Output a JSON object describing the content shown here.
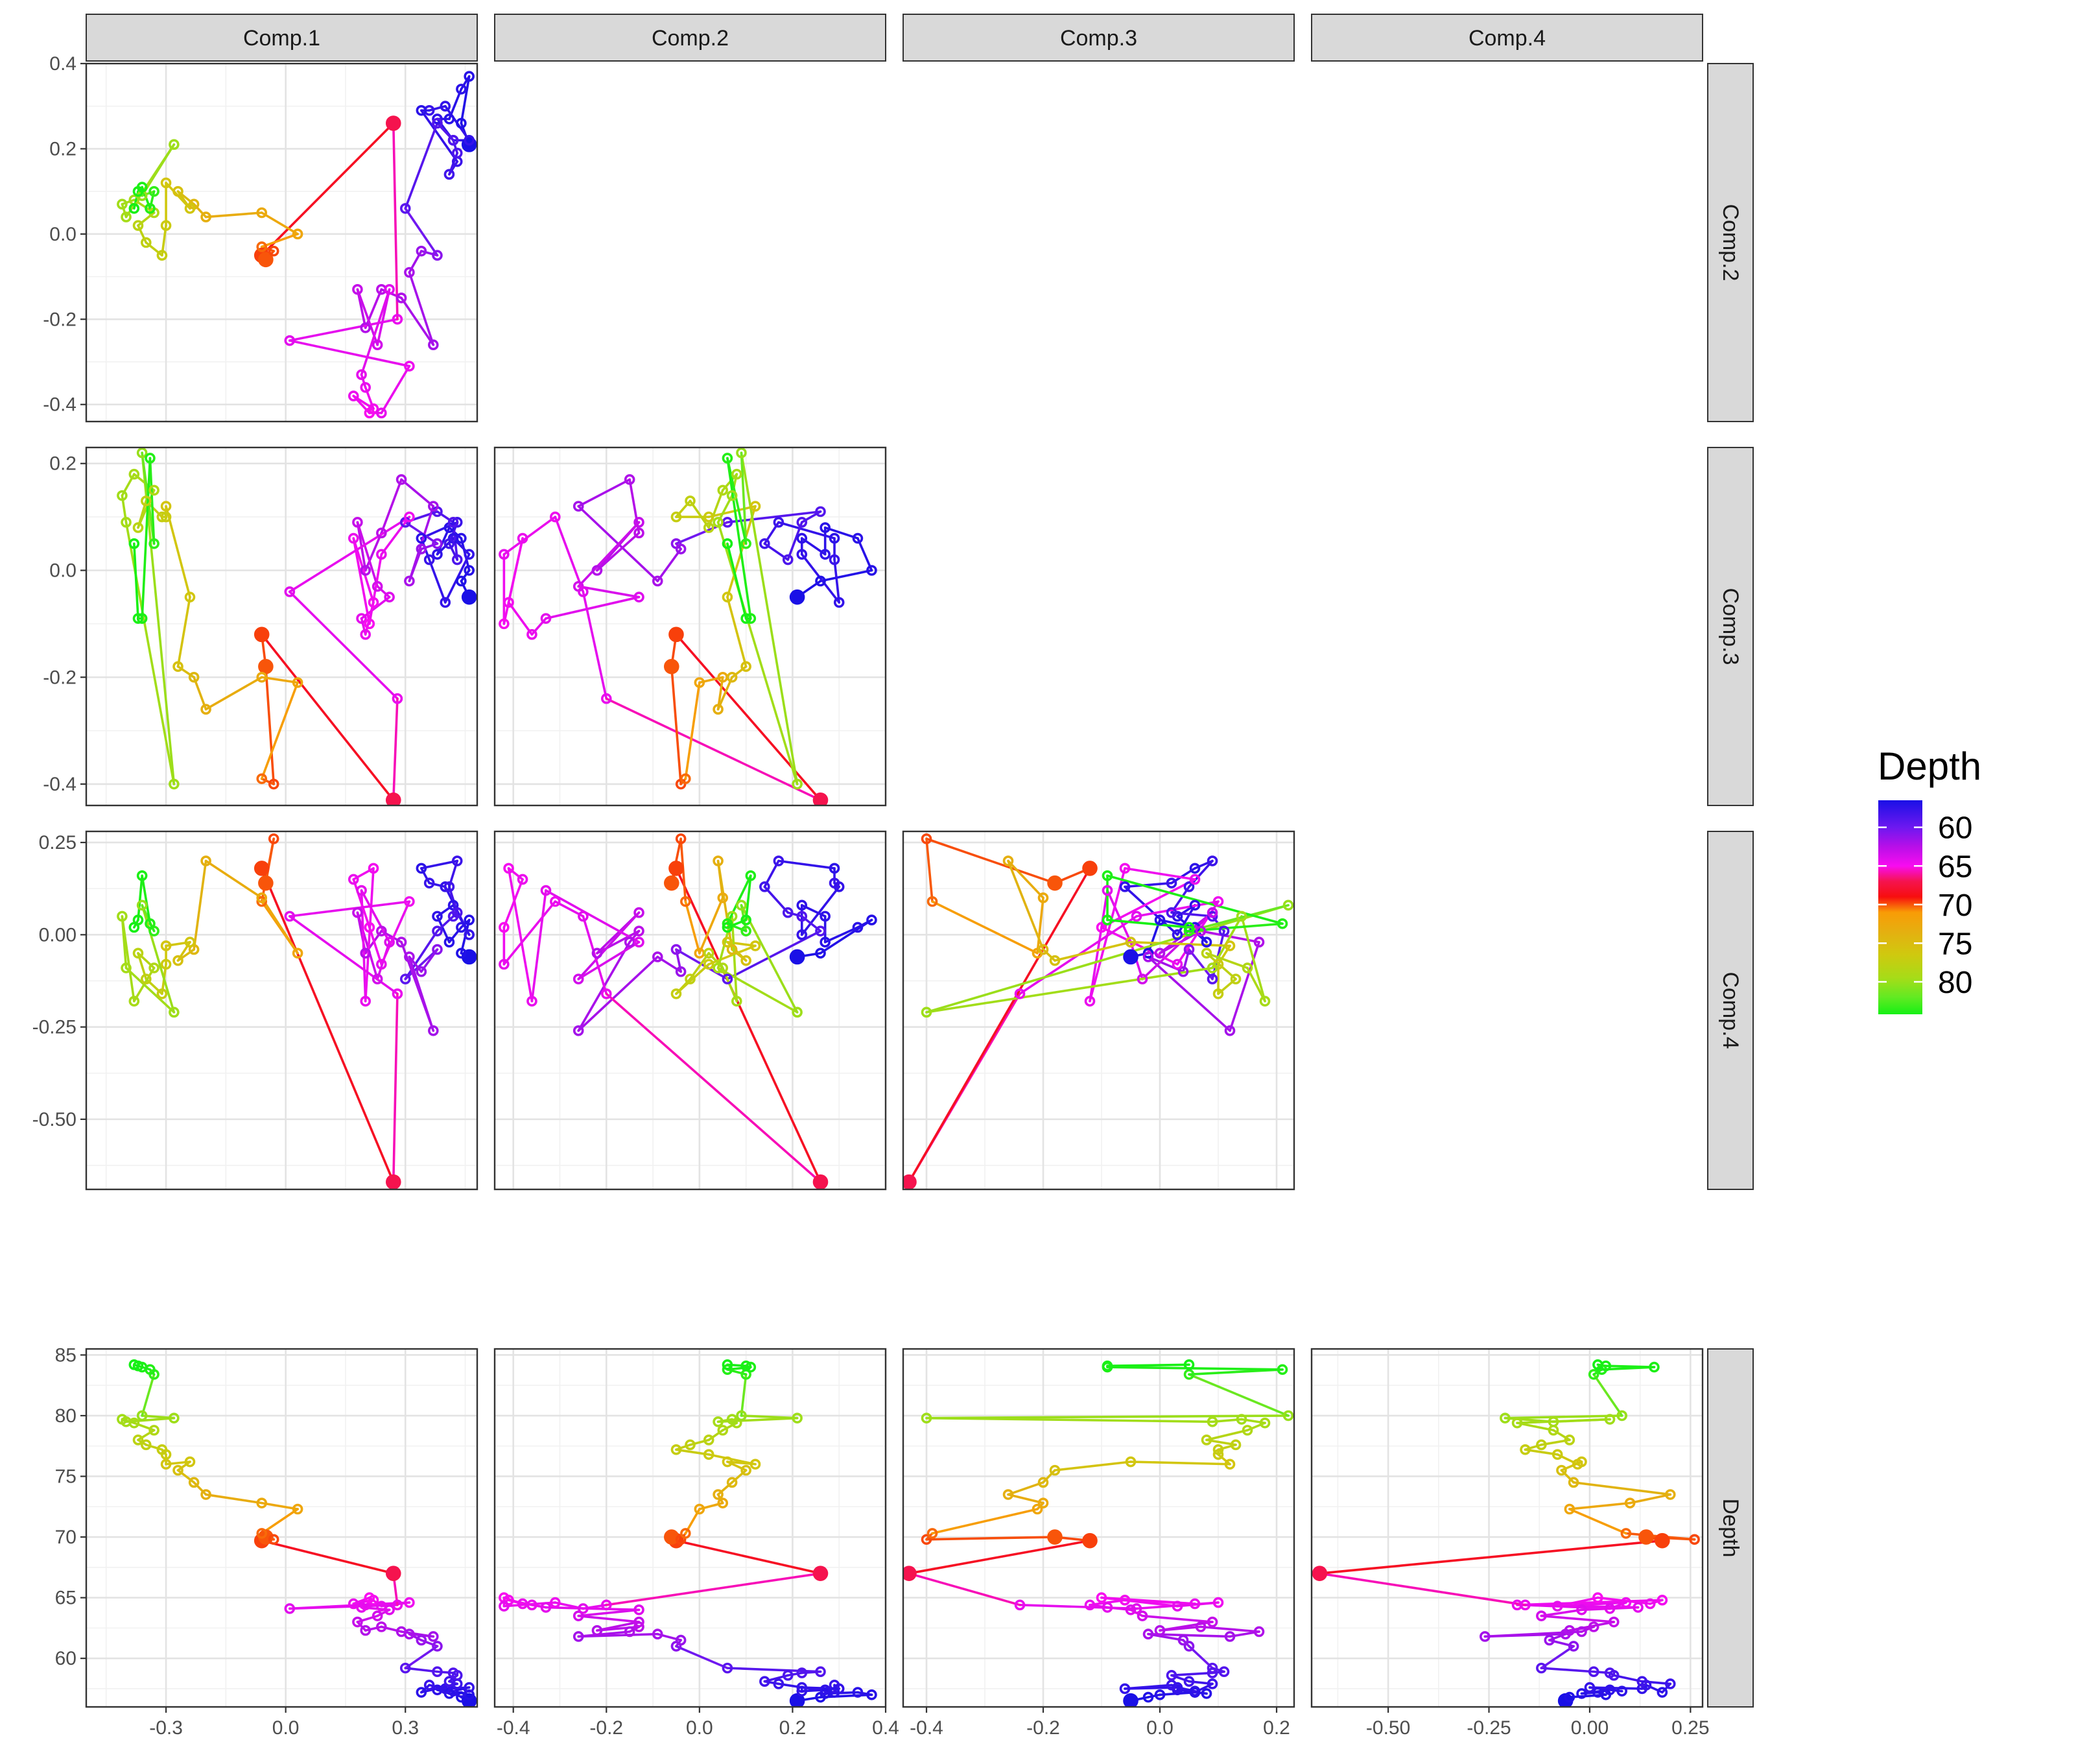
{
  "chart_data": {
    "type": "scatter",
    "description_of_layout": "",
    "variables": [
      "Comp.1",
      "Comp.2",
      "Comp.3",
      "Comp.4",
      "Depth"
    ],
    "column_strips": [
      "Comp.1",
      "Comp.2",
      "Comp.3",
      "Comp.4"
    ],
    "row_strips": [
      "Comp.2",
      "Comp.3",
      "Comp.4",
      "Depth"
    ],
    "axes": {
      "Comp.1": {
        "lim": [
          -0.5,
          0.48
        ],
        "ticks": [
          -0.3,
          0.0,
          0.3
        ],
        "tick_labels": [
          "-0.3",
          "0.0",
          "0.3"
        ]
      },
      "Comp.2": {
        "lim": [
          -0.44,
          0.4
        ],
        "ticks": [
          -0.4,
          -0.2,
          0.0,
          0.2,
          0.4
        ],
        "tick_labels": [
          "-0.4",
          "-0.2",
          "0.0",
          "0.2",
          "0.4"
        ]
      },
      "Comp.3": {
        "lim": [
          -0.44,
          0.23
        ],
        "ticks": [
          -0.4,
          -0.2,
          0.0,
          0.2
        ],
        "tick_labels": [
          "-0.4",
          "-0.2",
          "0.0",
          "0.2"
        ]
      },
      "Comp.4": {
        "lim": [
          -0.69,
          0.28
        ],
        "ticks": [
          -0.5,
          -0.25,
          0.0,
          0.25
        ],
        "x_tick_labels": [
          "-0.50",
          "-0.25",
          "0.00",
          "0.25"
        ],
        "y_tick_labels": [
          "-0.50",
          "-0.25",
          "0.00",
          "0.25"
        ]
      },
      "Depth": {
        "lim": [
          56,
          85.5
        ],
        "ticks": [
          60,
          65,
          70,
          75,
          80,
          85
        ],
        "tick_labels": [
          "60",
          "65",
          "70",
          "75",
          "80",
          "85"
        ]
      }
    },
    "legend": {
      "title": "Depth",
      "labels": [
        "60",
        "65",
        "70",
        "75",
        "80"
      ],
      "values": [
        60,
        65,
        70,
        75,
        80
      ],
      "range": [
        56.5,
        84.2
      ],
      "position": "right"
    },
    "color_scale": [
      {
        "depth": 56.5,
        "color": "#1a10e6"
      },
      {
        "depth": 60.0,
        "color": "#6d18f0"
      },
      {
        "depth": 62.5,
        "color": "#b80fe8"
      },
      {
        "depth": 65.0,
        "color": "#f80cf0"
      },
      {
        "depth": 67.0,
        "color": "#f5134e"
      },
      {
        "depth": 69.0,
        "color": "#f70e0e"
      },
      {
        "depth": 71.0,
        "color": "#f99c06"
      },
      {
        "depth": 73.5,
        "color": "#e5af10"
      },
      {
        "depth": 76.5,
        "color": "#cfc90f"
      },
      {
        "depth": 79.5,
        "color": "#a6dc18"
      },
      {
        "depth": 82.0,
        "color": "#62ea22"
      },
      {
        "depth": 84.2,
        "color": "#15f015"
      }
    ],
    "highlight_depths": [
      56.5,
      67.0,
      69.7,
      70.0
    ],
    "samples": [
      {
        "depth": 56.5,
        "c1": 0.46,
        "c2": 0.21,
        "c3": -0.05,
        "c4": -0.06
      },
      {
        "depth": 56.8,
        "c1": 0.44,
        "c2": 0.26,
        "c3": -0.02,
        "c4": -0.05
      },
      {
        "depth": 57.0,
        "c1": 0.46,
        "c2": 0.37,
        "c3": 0.0,
        "c4": 0.04
      },
      {
        "depth": 57.2,
        "c1": 0.44,
        "c2": 0.34,
        "c3": 0.06,
        "c4": 0.02
      },
      {
        "depth": 57.1,
        "c1": 0.41,
        "c2": 0.27,
        "c3": 0.08,
        "c4": -0.02
      },
      {
        "depth": 57.4,
        "c1": 0.38,
        "c2": 0.27,
        "c3": 0.03,
        "c4": 0.05
      },
      {
        "depth": 57.3,
        "c1": 0.42,
        "c2": 0.22,
        "c3": 0.06,
        "c4": 0.08
      },
      {
        "depth": 57.6,
        "c1": 0.46,
        "c2": 0.22,
        "c3": 0.03,
        "c4": 0.0
      },
      {
        "depth": 57.5,
        "c1": 0.4,
        "c2": 0.3,
        "c3": -0.06,
        "c4": 0.13
      },
      {
        "depth": 57.8,
        "c1": 0.36,
        "c2": 0.29,
        "c3": 0.02,
        "c4": 0.14
      },
      {
        "depth": 57.2,
        "c1": 0.34,
        "c2": 0.29,
        "c3": 0.06,
        "c4": 0.18
      },
      {
        "depth": 57.9,
        "c1": 0.43,
        "c2": 0.17,
        "c3": 0.09,
        "c4": 0.2
      },
      {
        "depth": 58.1,
        "c1": 0.41,
        "c2": 0.14,
        "c3": 0.05,
        "c4": 0.13
      },
      {
        "depth": 58.6,
        "c1": 0.43,
        "c2": 0.19,
        "c3": 0.02,
        "c4": 0.06
      },
      {
        "depth": 58.8,
        "c1": 0.42,
        "c2": 0.22,
        "c3": 0.09,
        "c4": 0.05
      },
      {
        "depth": 58.9,
        "c1": 0.38,
        "c2": 0.26,
        "c3": 0.11,
        "c4": 0.01
      },
      {
        "depth": 59.2,
        "c1": 0.3,
        "c2": 0.06,
        "c3": 0.09,
        "c4": -0.12
      },
      {
        "depth": 61.0,
        "c1": 0.38,
        "c2": -0.05,
        "c3": 0.05,
        "c4": -0.04
      },
      {
        "depth": 61.5,
        "c1": 0.34,
        "c2": -0.04,
        "c3": 0.04,
        "c4": -0.1
      },
      {
        "depth": 62.0,
        "c1": 0.31,
        "c2": -0.09,
        "c3": -0.02,
        "c4": -0.06
      },
      {
        "depth": 61.8,
        "c1": 0.37,
        "c2": -0.26,
        "c3": 0.12,
        "c4": -0.26
      },
      {
        "depth": 62.2,
        "c1": 0.29,
        "c2": -0.15,
        "c3": 0.17,
        "c4": -0.02
      },
      {
        "depth": 62.6,
        "c1": 0.24,
        "c2": -0.13,
        "c3": 0.07,
        "c4": 0.01
      },
      {
        "depth": 62.3,
        "c1": 0.2,
        "c2": -0.22,
        "c3": 0.0,
        "c4": -0.05
      },
      {
        "depth": 63.0,
        "c1": 0.18,
        "c2": -0.13,
        "c3": 0.09,
        "c4": 0.06
      },
      {
        "depth": 63.5,
        "c1": 0.23,
        "c2": -0.26,
        "c3": -0.03,
        "c4": -0.12
      },
      {
        "depth": 64.0,
        "c1": 0.26,
        "c2": -0.13,
        "c3": -0.05,
        "c4": -0.02
      },
      {
        "depth": 64.2,
        "c1": 0.19,
        "c2": -0.33,
        "c3": -0.09,
        "c4": 0.12
      },
      {
        "depth": 64.4,
        "c1": 0.2,
        "c2": -0.36,
        "c3": -0.12,
        "c4": -0.18
      },
      {
        "depth": 64.8,
        "c1": 0.22,
        "c2": -0.41,
        "c3": -0.06,
        "c4": 0.18
      },
      {
        "depth": 64.5,
        "c1": 0.17,
        "c2": -0.38,
        "c3": 0.06,
        "c4": 0.15
      },
      {
        "depth": 65.0,
        "c1": 0.21,
        "c2": -0.42,
        "c3": -0.1,
        "c4": 0.02
      },
      {
        "depth": 64.3,
        "c1": 0.24,
        "c2": -0.42,
        "c3": 0.03,
        "c4": -0.08
      },
      {
        "depth": 64.6,
        "c1": 0.31,
        "c2": -0.31,
        "c3": 0.1,
        "c4": 0.09
      },
      {
        "depth": 64.1,
        "c1": 0.01,
        "c2": -0.25,
        "c3": -0.04,
        "c4": 0.05
      },
      {
        "depth": 64.4,
        "c1": 0.28,
        "c2": -0.2,
        "c3": -0.24,
        "c4": -0.16
      },
      {
        "depth": 67.0,
        "c1": 0.27,
        "c2": 0.26,
        "c3": -0.43,
        "c4": -0.67
      },
      {
        "depth": 69.7,
        "c1": -0.06,
        "c2": -0.05,
        "c3": -0.12,
        "c4": 0.18
      },
      {
        "depth": 70.0,
        "c1": -0.05,
        "c2": -0.06,
        "c3": -0.18,
        "c4": 0.14
      },
      {
        "depth": 69.8,
        "c1": -0.03,
        "c2": -0.04,
        "c3": -0.4,
        "c4": 0.26
      },
      {
        "depth": 70.3,
        "c1": -0.06,
        "c2": -0.03,
        "c3": -0.39,
        "c4": 0.09
      },
      {
        "depth": 72.3,
        "c1": 0.03,
        "c2": 0.0,
        "c3": -0.21,
        "c4": -0.05
      },
      {
        "depth": 72.8,
        "c1": -0.06,
        "c2": 0.05,
        "c3": -0.2,
        "c4": 0.1
      },
      {
        "depth": 73.5,
        "c1": -0.2,
        "c2": 0.04,
        "c3": -0.26,
        "c4": 0.2
      },
      {
        "depth": 74.5,
        "c1": -0.23,
        "c2": 0.07,
        "c3": -0.2,
        "c4": -0.04
      },
      {
        "depth": 75.5,
        "c1": -0.27,
        "c2": 0.1,
        "c3": -0.18,
        "c4": -0.07
      },
      {
        "depth": 76.2,
        "c1": -0.24,
        "c2": 0.06,
        "c3": -0.05,
        "c4": -0.02
      },
      {
        "depth": 76.0,
        "c1": -0.3,
        "c2": 0.12,
        "c3": 0.12,
        "c4": -0.03
      },
      {
        "depth": 76.8,
        "c1": -0.3,
        "c2": 0.02,
        "c3": 0.1,
        "c4": -0.08
      },
      {
        "depth": 77.2,
        "c1": -0.31,
        "c2": -0.05,
        "c3": 0.1,
        "c4": -0.16
      },
      {
        "depth": 77.6,
        "c1": -0.35,
        "c2": -0.02,
        "c3": 0.13,
        "c4": -0.12
      },
      {
        "depth": 78.0,
        "c1": -0.37,
        "c2": 0.02,
        "c3": 0.08,
        "c4": -0.05
      },
      {
        "depth": 78.8,
        "c1": -0.33,
        "c2": 0.05,
        "c3": 0.15,
        "c4": -0.09
      },
      {
        "depth": 79.4,
        "c1": -0.38,
        "c2": 0.08,
        "c3": 0.18,
        "c4": -0.18
      },
      {
        "depth": 79.7,
        "c1": -0.41,
        "c2": 0.07,
        "c3": 0.14,
        "c4": 0.05
      },
      {
        "depth": 79.5,
        "c1": -0.4,
        "c2": 0.04,
        "c3": 0.09,
        "c4": -0.09
      },
      {
        "depth": 79.8,
        "c1": -0.28,
        "c2": 0.21,
        "c3": -0.4,
        "c4": -0.21
      },
      {
        "depth": 80.0,
        "c1": -0.36,
        "c2": 0.09,
        "c3": 0.22,
        "c4": 0.08
      },
      {
        "depth": 83.4,
        "c1": -0.33,
        "c2": 0.1,
        "c3": 0.05,
        "c4": 0.01
      },
      {
        "depth": 83.8,
        "c1": -0.34,
        "c2": 0.06,
        "c3": 0.21,
        "c4": 0.03
      },
      {
        "depth": 84.0,
        "c1": -0.36,
        "c2": 0.11,
        "c3": -0.09,
        "c4": 0.16
      },
      {
        "depth": 84.1,
        "c1": -0.37,
        "c2": 0.1,
        "c3": -0.09,
        "c4": 0.04
      },
      {
        "depth": 84.2,
        "c1": -0.38,
        "c2": 0.06,
        "c3": 0.05,
        "c4": 0.02
      }
    ]
  }
}
